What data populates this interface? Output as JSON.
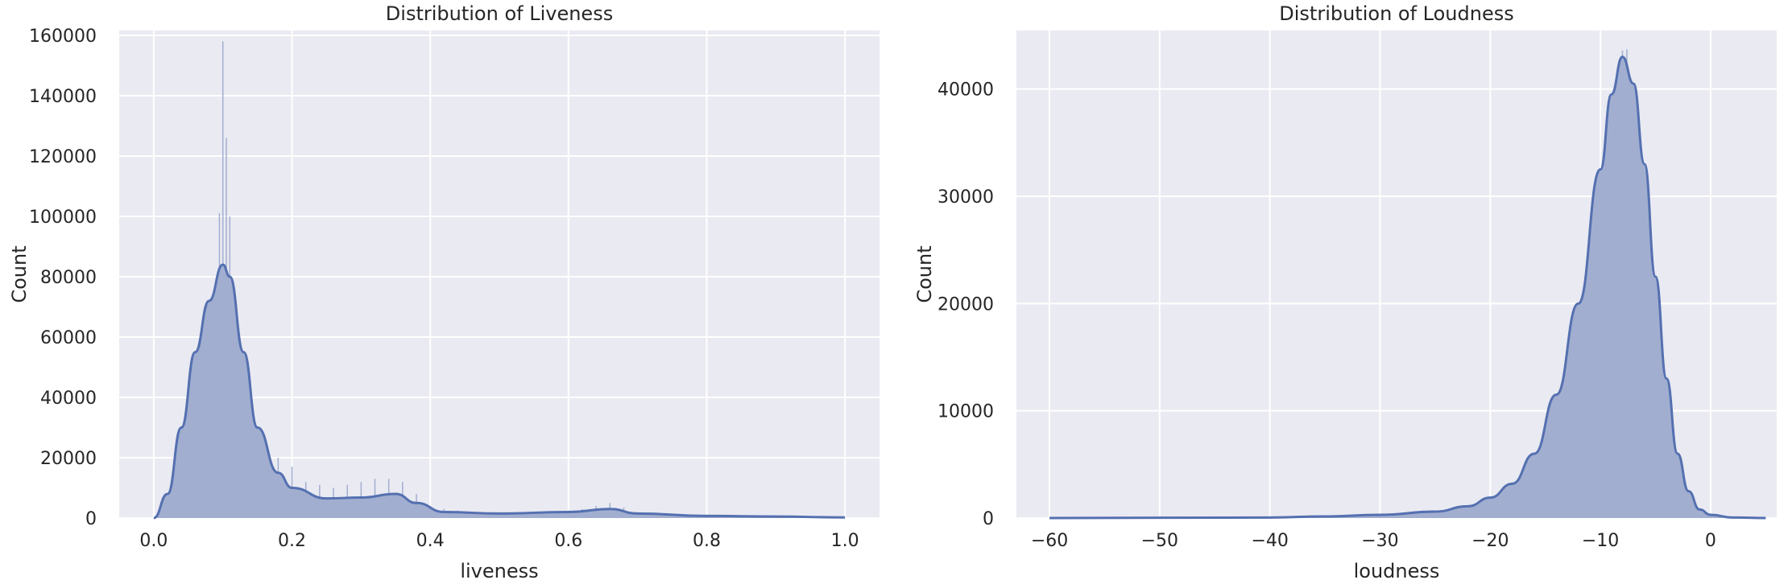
{
  "chart_data": [
    {
      "type": "histogram",
      "title": "Distribution of Liveness",
      "xlabel": "liveness",
      "ylabel": "Count",
      "xlim": [
        -0.05,
        1.05
      ],
      "ylim": [
        0,
        160000
      ],
      "xticks": [
        "0.0",
        "0.2",
        "0.4",
        "0.6",
        "0.8",
        "1.0"
      ],
      "yticks": [
        "0",
        "20000",
        "40000",
        "60000",
        "80000",
        "100000",
        "120000",
        "140000",
        "160000"
      ],
      "grid": true,
      "kde": {
        "x": [
          0.0,
          0.02,
          0.04,
          0.06,
          0.08,
          0.1,
          0.11,
          0.13,
          0.15,
          0.18,
          0.2,
          0.25,
          0.3,
          0.35,
          0.38,
          0.42,
          0.5,
          0.6,
          0.66,
          0.7,
          0.8,
          0.9,
          1.0
        ],
        "y": [
          0,
          8000,
          30000,
          55000,
          72000,
          84000,
          80000,
          55000,
          30000,
          15000,
          10000,
          6500,
          6800,
          8000,
          5000,
          2000,
          1500,
          2000,
          3000,
          1500,
          700,
          500,
          200
        ]
      },
      "spikes": {
        "x": [
          0.095,
          0.1,
          0.105,
          0.11,
          0.12,
          0.14,
          0.16,
          0.18,
          0.2,
          0.22,
          0.24,
          0.26,
          0.28,
          0.3,
          0.32,
          0.34,
          0.36,
          0.38,
          0.4,
          0.42,
          0.44,
          0.6,
          0.62,
          0.64,
          0.66,
          0.68
        ],
        "y": [
          101000,
          158000,
          126000,
          100000,
          60000,
          37000,
          26000,
          20000,
          17000,
          12000,
          11000,
          10000,
          11000,
          12000,
          13000,
          13000,
          12000,
          8000,
          4000,
          3000,
          2500,
          2500,
          3000,
          4000,
          5000,
          3500
        ]
      }
    },
    {
      "type": "histogram",
      "title": "Distribution of Loudness",
      "xlabel": "loudness",
      "ylabel": "Count",
      "xlim": [
        -63,
        6
      ],
      "ylim": [
        0,
        45000
      ],
      "xticks": [
        "−60",
        "−50",
        "−40",
        "−30",
        "−20",
        "−10",
        "0"
      ],
      "yticks": [
        "0",
        "10000",
        "20000",
        "30000",
        "40000"
      ],
      "grid": true,
      "kde": {
        "x": [
          -60,
          -40,
          -35,
          -30,
          -25,
          -22,
          -20,
          -18,
          -16,
          -14,
          -12,
          -10,
          -9,
          -8,
          -7,
          -6,
          -5,
          -4,
          -3,
          -2,
          -1,
          0,
          2,
          5
        ],
        "y": [
          0,
          50,
          150,
          300,
          600,
          1100,
          1900,
          3200,
          6000,
          11500,
          20000,
          32500,
          39500,
          43000,
          40500,
          33000,
          22500,
          13000,
          6000,
          2500,
          800,
          300,
          50,
          0
        ]
      },
      "spikes": {
        "x": [
          -8,
          -7.6
        ],
        "y": [
          43600,
          43700
        ]
      }
    }
  ],
  "colors": {
    "fill": "#a2aed0",
    "line": "#5470b0",
    "plot_bg": "#eaeaf2",
    "grid": "#ffffff"
  }
}
